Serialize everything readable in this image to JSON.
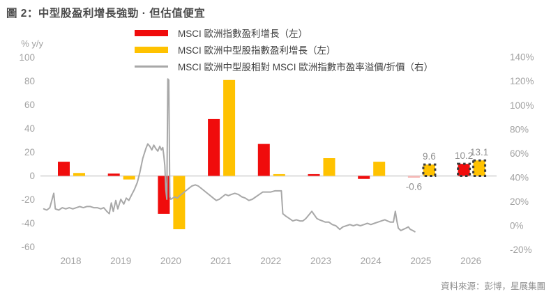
{
  "title": "圖 2：中型股盈利增長強勁 · 但估值便宜",
  "source": "資料來源：彭博，星展集團",
  "colors": {
    "red_bar": "#f00c0c",
    "pale_red_bar": "#f6b6b4",
    "yellow_bar": "#ffc200",
    "gray_line": "#a8a8a8",
    "forecast_dash": "#3b3b3b",
    "zero_line": "#dcdcdc",
    "axis_text": "#a2a2a2",
    "data_label_text": "#8f8f8f"
  },
  "legend": {
    "items": [
      {
        "label": "MSCI 歐洲指數盈利增長（左）",
        "swatch": "red-bar"
      },
      {
        "label": "MSCI 歐洲中型股指數盈利增長（左）",
        "swatch": "yellow-bar"
      },
      {
        "label": "MSCI 歐洲中型股相對 MSCI 歐洲指數市盈率溢價/折價（右）",
        "swatch": "gray-line"
      }
    ]
  },
  "chart_data": {
    "type": "bar",
    "subtype": "combo-bar-line-dual-axis",
    "left_axis": {
      "unit_label": "% y/y",
      "ticks": [
        100,
        80,
        60,
        40,
        20,
        0,
        -20,
        -40,
        -60
      ],
      "range": [
        -60,
        100
      ],
      "grid": "zero-line-only"
    },
    "right_axis": {
      "tick_labels": [
        "140%",
        "120%",
        "100%",
        "80%",
        "60%",
        "40%",
        "20%",
        "0%",
        "-20%"
      ],
      "tick_values": [
        140,
        120,
        100,
        80,
        60,
        40,
        20,
        0,
        -20
      ],
      "range": [
        -20,
        140
      ]
    },
    "categories": [
      2018,
      2019,
      2020,
      2021,
      2022,
      2023,
      2024,
      2025,
      2026
    ],
    "series": [
      {
        "name": "MSCI 歐洲指數盈利增長",
        "axis": "left",
        "color": "#f00c0c",
        "values": [
          12,
          2,
          -32,
          48,
          27,
          1.5,
          -2.5,
          -0.6,
          10.2
        ],
        "styles": [
          "solid",
          "solid",
          "solid",
          "solid",
          "solid",
          "solid",
          "solid",
          "pale",
          "dashed"
        ],
        "labels": [
          null,
          null,
          null,
          null,
          null,
          null,
          null,
          "-0.6",
          "10.2"
        ]
      },
      {
        "name": "MSCI 歐洲中型股指數盈利增長",
        "axis": "left",
        "color": "#ffc200",
        "values": [
          2.5,
          -3,
          -45,
          81,
          1.5,
          15,
          12,
          9.6,
          13.1
        ],
        "styles": [
          "solid",
          "solid",
          "solid",
          "solid",
          "solid",
          "solid",
          "solid",
          "dashed",
          "dashed"
        ],
        "labels": [
          null,
          null,
          null,
          null,
          null,
          null,
          null,
          "9.6",
          "13.1"
        ]
      }
    ],
    "line_series": {
      "name": "MSCI 歐洲中型股相對 MSCI 歐洲指數市盈率溢價/折價",
      "axis": "right",
      "color": "#a8a8a8",
      "points": [
        [
          2017.46,
          14
        ],
        [
          2017.52,
          13
        ],
        [
          2017.58,
          15
        ],
        [
          2017.66,
          27
        ],
        [
          2017.69,
          14
        ],
        [
          2017.76,
          13
        ],
        [
          2017.83,
          15
        ],
        [
          2017.9,
          14
        ],
        [
          2017.97,
          15
        ],
        [
          2018.04,
          14
        ],
        [
          2018.11,
          15
        ],
        [
          2018.18,
          16
        ],
        [
          2018.25,
          15
        ],
        [
          2018.32,
          16
        ],
        [
          2018.39,
          16
        ],
        [
          2018.46,
          15
        ],
        [
          2018.53,
          15
        ],
        [
          2018.6,
          14
        ],
        [
          2018.66,
          15
        ],
        [
          2018.72,
          12
        ],
        [
          2018.77,
          10
        ],
        [
          2018.81,
          19
        ],
        [
          2018.85,
          12
        ],
        [
          2018.9,
          21
        ],
        [
          2018.94,
          14
        ],
        [
          2019.0,
          22
        ],
        [
          2019.06,
          18
        ],
        [
          2019.11,
          23
        ],
        [
          2019.16,
          21
        ],
        [
          2019.22,
          26
        ],
        [
          2019.27,
          30
        ],
        [
          2019.33,
          36
        ],
        [
          2019.38,
          44
        ],
        [
          2019.44,
          56
        ],
        [
          2019.5,
          64
        ],
        [
          2019.54,
          68
        ],
        [
          2019.58,
          66
        ],
        [
          2019.62,
          63
        ],
        [
          2019.66,
          67
        ],
        [
          2019.7,
          64
        ],
        [
          2019.74,
          62
        ],
        [
          2019.78,
          66
        ],
        [
          2019.81,
          63
        ],
        [
          2019.84,
          65
        ],
        [
          2019.86,
          58
        ],
        [
          2019.88,
          50
        ],
        [
          2019.9,
          30
        ],
        [
          2019.92,
          22
        ],
        [
          2019.94,
          122
        ],
        [
          2019.96,
          121
        ],
        [
          2019.98,
          24
        ],
        [
          2020.0,
          22
        ],
        [
          2020.04,
          23
        ],
        [
          2020.08,
          24
        ],
        [
          2020.13,
          23
        ],
        [
          2020.18,
          25
        ],
        [
          2020.24,
          27
        ],
        [
          2020.3,
          29
        ],
        [
          2020.36,
          31
        ],
        [
          2020.42,
          33
        ],
        [
          2020.49,
          34
        ],
        [
          2020.55,
          33
        ],
        [
          2020.61,
          31
        ],
        [
          2020.67,
          29
        ],
        [
          2020.73,
          27
        ],
        [
          2020.79,
          25
        ],
        [
          2020.85,
          23
        ],
        [
          2020.91,
          21
        ],
        [
          2020.97,
          22
        ],
        [
          2021.03,
          24
        ],
        [
          2021.09,
          26
        ],
        [
          2021.15,
          25
        ],
        [
          2021.21,
          26
        ],
        [
          2021.28,
          27
        ],
        [
          2021.35,
          26
        ],
        [
          2021.42,
          24
        ],
        [
          2021.49,
          23
        ],
        [
          2021.56,
          21
        ],
        [
          2021.63,
          22
        ],
        [
          2021.7,
          24
        ],
        [
          2021.77,
          26
        ],
        [
          2021.84,
          28
        ],
        [
          2021.92,
          28
        ],
        [
          2022.0,
          28
        ],
        [
          2022.08,
          29
        ],
        [
          2022.16,
          29
        ],
        [
          2022.21,
          29
        ],
        [
          2022.24,
          10
        ],
        [
          2022.3,
          8
        ],
        [
          2022.37,
          6
        ],
        [
          2022.44,
          4
        ],
        [
          2022.51,
          5
        ],
        [
          2022.58,
          4
        ],
        [
          2022.64,
          4
        ],
        [
          2022.7,
          6
        ],
        [
          2022.76,
          9
        ],
        [
          2022.82,
          12
        ],
        [
          2022.87,
          9
        ],
        [
          2022.92,
          6
        ],
        [
          2022.97,
          5
        ],
        [
          2023.03,
          4
        ],
        [
          2023.09,
          3
        ],
        [
          2023.16,
          3
        ],
        [
          2023.23,
          1
        ],
        [
          2023.3,
          0
        ],
        [
          2023.38,
          -3
        ],
        [
          2023.44,
          -1
        ],
        [
          2023.51,
          0
        ],
        [
          2023.58,
          1
        ],
        [
          2023.65,
          0
        ],
        [
          2023.72,
          1
        ],
        [
          2023.79,
          0
        ],
        [
          2023.86,
          1
        ],
        [
          2023.93,
          2
        ],
        [
          2024.0,
          1
        ],
        [
          2024.07,
          2
        ],
        [
          2024.14,
          3
        ],
        [
          2024.21,
          4
        ],
        [
          2024.28,
          5
        ],
        [
          2024.33,
          4
        ],
        [
          2024.39,
          3
        ],
        [
          2024.45,
          3
        ],
        [
          2024.49,
          12
        ],
        [
          2024.52,
          4
        ],
        [
          2024.55,
          -2
        ],
        [
          2024.6,
          -4
        ],
        [
          2024.65,
          -3
        ],
        [
          2024.7,
          -2
        ],
        [
          2024.75,
          -1
        ],
        [
          2024.79,
          -3
        ],
        [
          2024.84,
          -4
        ],
        [
          2024.88,
          -5
        ]
      ]
    },
    "title": "圖 2：中型股盈利增長強勁 · 但估值便宜",
    "legend_position": "top-center",
    "annotations": [
      "9.6",
      "10.2",
      "13.1",
      "-0.6"
    ]
  }
}
